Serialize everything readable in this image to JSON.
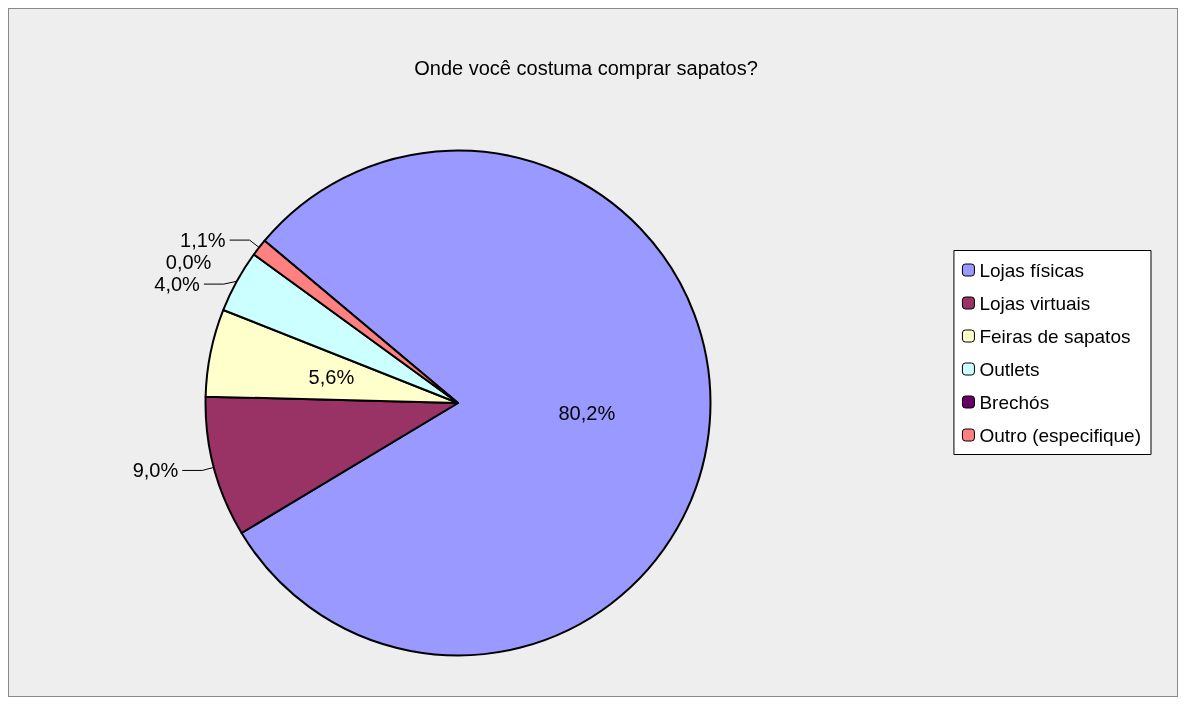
{
  "chart_data": {
    "type": "pie",
    "title": "Onde você costuma comprar sapatos?",
    "categories": [
      "Lojas físicas",
      "Lojas virtuais",
      "Feiras de sapatos",
      "Outlets",
      "Brechós",
      "Outro (especifique)"
    ],
    "values": [
      80.2,
      9.0,
      5.6,
      4.0,
      0.0,
      1.1
    ],
    "colors": [
      "#9999ff",
      "#993366",
      "#ffffcc",
      "#ccffff",
      "#660066",
      "#ff8080"
    ],
    "value_labels": [
      "80,2%",
      "9,0%",
      "5,6%",
      "4,0%",
      "0,0%",
      "1,1%"
    ],
    "legend": "right"
  }
}
